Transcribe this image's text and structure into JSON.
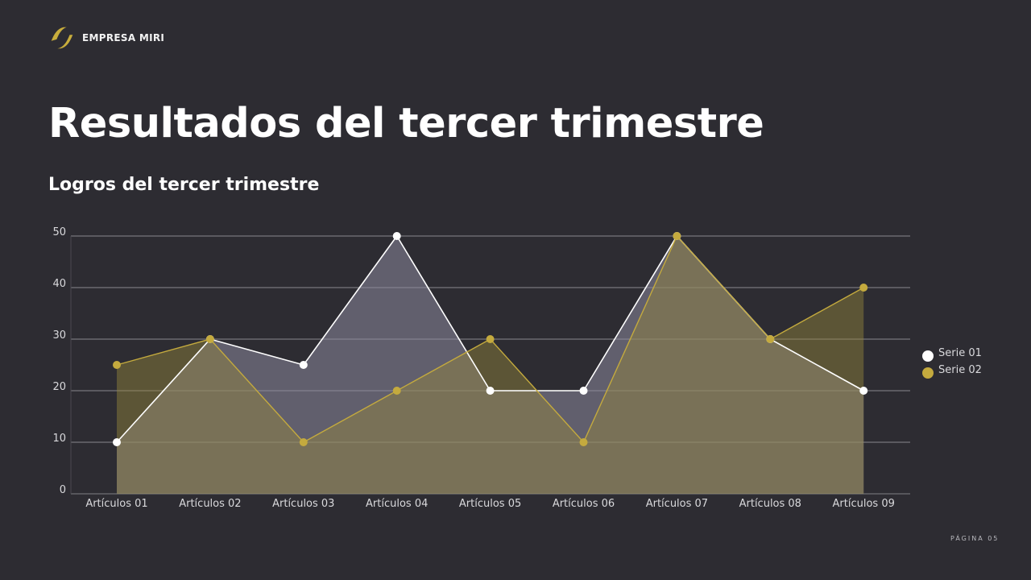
{
  "brand": {
    "name": "EMPRESA MIRI",
    "icon": "double-slash-logo-icon",
    "accent": "#c8ad3c"
  },
  "header": {
    "title": "Resultados del tercer trimestre",
    "subtitle": "Logros del tercer trimestre"
  },
  "footer": {
    "page_label": "PÁGINA 05"
  },
  "colors": {
    "background": "#2d2c32",
    "serie01": "#ffffff",
    "serie02": "#c4aa3e"
  },
  "chart_data": {
    "type": "area",
    "title": "Logros del tercer trimestre",
    "xlabel": "",
    "ylabel": "",
    "categories": [
      "Artículos 01",
      "Artículos 02",
      "Artículos 03",
      "Artículos 04",
      "Artículos 05",
      "Artículos 06",
      "Artículos 07",
      "Artículos 08",
      "Artículos 09"
    ],
    "series": [
      {
        "name": "Serie 01",
        "values": [
          10,
          30,
          25,
          50,
          20,
          20,
          50,
          30,
          20
        ],
        "color": "#ffffff"
      },
      {
        "name": "Serie 02",
        "values": [
          25,
          30,
          10,
          20,
          30,
          10,
          50,
          30,
          40
        ],
        "color": "#c4aa3e"
      }
    ],
    "yticks": [
      0,
      10,
      20,
      30,
      40,
      50
    ],
    "ylim": [
      0,
      50
    ],
    "grid": true,
    "legend_position": "right"
  }
}
